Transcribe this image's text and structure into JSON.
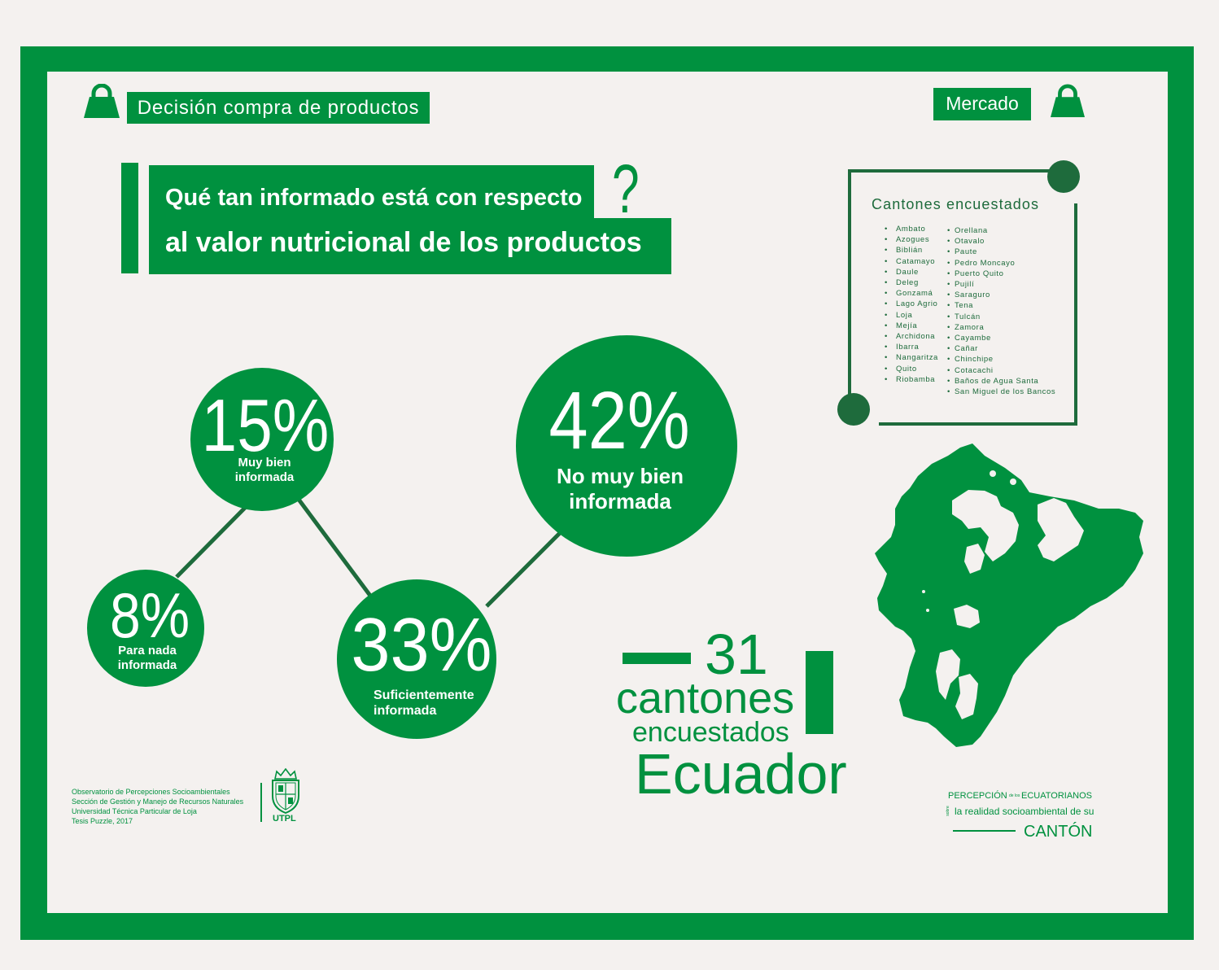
{
  "header": {
    "left_label": "Decisión compra de productos",
    "left_icon": "shopping-bag-icon",
    "right_label": "Mercado",
    "right_icon": "shopping-bag-icon"
  },
  "question": {
    "line1": "Qué tan informado está con respecto",
    "line2": "al valor nutricional de los productos",
    "mark": "?"
  },
  "results": [
    {
      "value": "8%",
      "label": [
        "Para nada",
        "informada"
      ]
    },
    {
      "value": "15%",
      "label": [
        "Muy bien",
        "informada"
      ]
    },
    {
      "value": "33%",
      "label": [
        "Suficientemente",
        "informada"
      ]
    },
    {
      "value": "42%",
      "label": [
        "No muy bien",
        "informada"
      ]
    }
  ],
  "cantones": {
    "title": "Cantones encuestados",
    "column1": [
      "Ambato",
      "Azogues",
      "Biblián",
      "Catamayo",
      "Daule",
      "Deleg",
      "Gonzamá",
      "Lago Agrio",
      "Loja",
      "Mejía",
      "Archidona",
      "Ibarra",
      "Nangaritza",
      "Quito",
      "Riobamba"
    ],
    "column2": [
      "Orellana",
      "Otavalo",
      "Paute",
      "Pedro Moncayo",
      "Puerto Quito",
      "Pujilí",
      "Saraguro",
      "Tena",
      "Tulcán",
      "Zamora",
      "Cayambe",
      "Cañar",
      "Chinchipe",
      "Cotacachi",
      "Baños de Agua Santa",
      "San Miguel de los Bancos"
    ]
  },
  "summary": {
    "count": "31",
    "line1": "cantones",
    "line2": "encuestados",
    "country": "Ecuador",
    "map_icon": "ecuador-map"
  },
  "footer": {
    "lines": [
      "Observatorio de Percepciones Socioambientales",
      "Sección de Gestión y Manejo de Recursos Naturales",
      "Universidad Técnica Particular de Loja",
      "Tesis Puzzle, 2017"
    ],
    "logo_icon": "utpl-shield-icon",
    "logo_text": "UTPL"
  },
  "brand": {
    "word1": "PERCEPCIÓN",
    "connector1": "de los",
    "word2": "ECUATORIANOS",
    "connector2": "sobre",
    "line": "la realidad socioambiental de su",
    "word3": "CANTÓN"
  },
  "colors": {
    "green": "#00913f",
    "dark_green": "#1e6b3c",
    "background": "#f4f1ef",
    "text_on_green": "#ffffff"
  }
}
